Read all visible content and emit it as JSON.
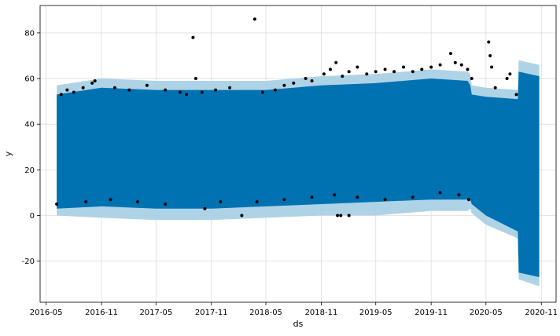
{
  "chart_data": {
    "type": "line",
    "title": "",
    "xlabel": "ds",
    "ylabel": "y",
    "xlim": [
      "2016-04-11",
      "2020-12-20"
    ],
    "ylim": [
      -38,
      92
    ],
    "grid": true,
    "x_ticks": [
      "2016-05",
      "2016-11",
      "2017-05",
      "2017-11",
      "2018-05",
      "2018-11",
      "2019-05",
      "2019-11",
      "2020-05",
      "2020-11"
    ],
    "y_ticks": [
      -20,
      0,
      20,
      40,
      60,
      80
    ],
    "series": [
      {
        "kind": "uncertainty_interval",
        "color": "#a6cee3",
        "x": [
          "2016-06-05",
          "2016-11-01",
          "2017-05-01",
          "2017-11-01",
          "2018-05-01",
          "2018-11-01",
          "2019-05-01",
          "2019-11-01",
          "2020-03-01",
          "2020-03-10",
          "2020-03-15",
          "2020-05-01",
          "2020-08-15",
          "2020-08-18",
          "2020-10-25"
        ],
        "upper": [
          57,
          60,
          59,
          59,
          59,
          61,
          62,
          64,
          63,
          62,
          57,
          56,
          55,
          68,
          66
        ],
        "lower": [
          0,
          -1,
          -2,
          -2,
          -1,
          0,
          0,
          2,
          2,
          3,
          1,
          -4,
          -10,
          -28,
          -31
        ]
      },
      {
        "kind": "forecast",
        "color": "#0072B2",
        "x": [
          "2016-06-05",
          "2016-11-01",
          "2017-05-01",
          "2017-11-01",
          "2018-05-01",
          "2018-11-01",
          "2019-05-01",
          "2019-11-01",
          "2020-03-01",
          "2020-03-10",
          "2020-03-15",
          "2020-05-01",
          "2020-08-15",
          "2020-08-18",
          "2020-10-25"
        ],
        "upper": [
          53,
          56,
          55,
          55,
          55,
          57,
          58,
          60,
          59,
          57,
          53,
          52,
          51,
          63,
          61
        ],
        "lower": [
          3,
          4,
          3,
          3,
          4,
          5,
          6,
          7,
          7,
          7,
          5,
          0,
          -7,
          -25,
          -27
        ]
      },
      {
        "kind": "observed",
        "color": "#000000",
        "points": [
          [
            "2016-06-05",
            5
          ],
          [
            "2016-06-20",
            53
          ],
          [
            "2016-07-10",
            55
          ],
          [
            "2016-08-01",
            54
          ],
          [
            "2016-09-01",
            56
          ],
          [
            "2016-10-01",
            58
          ],
          [
            "2016-10-10",
            59
          ],
          [
            "2016-12-15",
            56
          ],
          [
            "2017-02-01",
            55
          ],
          [
            "2017-04-01",
            57
          ],
          [
            "2017-06-01",
            55
          ],
          [
            "2017-07-20",
            54
          ],
          [
            "2017-08-10",
            53
          ],
          [
            "2017-09-01",
            78
          ],
          [
            "2017-09-10",
            60
          ],
          [
            "2017-10-01",
            54
          ],
          [
            "2017-11-15",
            55
          ],
          [
            "2018-01-01",
            56
          ],
          [
            "2018-02-10",
            0
          ],
          [
            "2018-03-25",
            86
          ],
          [
            "2018-04-20",
            54
          ],
          [
            "2018-06-01",
            55
          ],
          [
            "2018-07-01",
            57
          ],
          [
            "2018-08-01",
            58
          ],
          [
            "2018-09-10",
            60
          ],
          [
            "2018-10-01",
            59
          ],
          [
            "2018-11-10",
            62
          ],
          [
            "2018-12-01",
            64
          ],
          [
            "2018-12-20",
            67
          ],
          [
            "2019-01-10",
            61
          ],
          [
            "2019-02-01",
            63
          ],
          [
            "2019-03-01",
            65
          ],
          [
            "2019-04-01",
            62
          ],
          [
            "2019-05-01",
            63
          ],
          [
            "2019-06-01",
            64
          ],
          [
            "2019-07-01",
            63
          ],
          [
            "2019-08-01",
            65
          ],
          [
            "2019-09-01",
            63
          ],
          [
            "2019-10-01",
            64
          ],
          [
            "2019-11-01",
            65
          ],
          [
            "2019-12-01",
            66
          ],
          [
            "2020-01-05",
            71
          ],
          [
            "2020-01-20",
            67
          ],
          [
            "2020-02-10",
            66
          ],
          [
            "2020-03-01",
            64
          ],
          [
            "2020-03-15",
            60
          ],
          [
            "2020-05-10",
            76
          ],
          [
            "2020-05-15",
            70
          ],
          [
            "2020-05-20",
            65
          ],
          [
            "2020-06-01",
            56
          ],
          [
            "2020-07-10",
            60
          ],
          [
            "2020-07-20",
            62
          ],
          [
            "2020-08-10",
            53
          ],
          [
            "2016-09-10",
            6
          ],
          [
            "2016-12-01",
            7
          ],
          [
            "2017-03-01",
            6
          ],
          [
            "2017-06-01",
            5
          ],
          [
            "2017-10-10",
            3
          ],
          [
            "2017-12-01",
            6
          ],
          [
            "2018-04-01",
            6
          ],
          [
            "2018-07-01",
            7
          ],
          [
            "2018-10-01",
            8
          ],
          [
            "2018-12-15",
            9
          ],
          [
            "2018-12-25",
            0
          ],
          [
            "2019-01-05",
            0
          ],
          [
            "2019-02-01",
            0
          ],
          [
            "2019-03-01",
            8
          ],
          [
            "2019-06-01",
            7
          ],
          [
            "2019-09-01",
            8
          ],
          [
            "2019-12-01",
            10
          ],
          [
            "2020-02-01",
            9
          ],
          [
            "2020-03-05",
            7
          ]
        ]
      }
    ]
  }
}
